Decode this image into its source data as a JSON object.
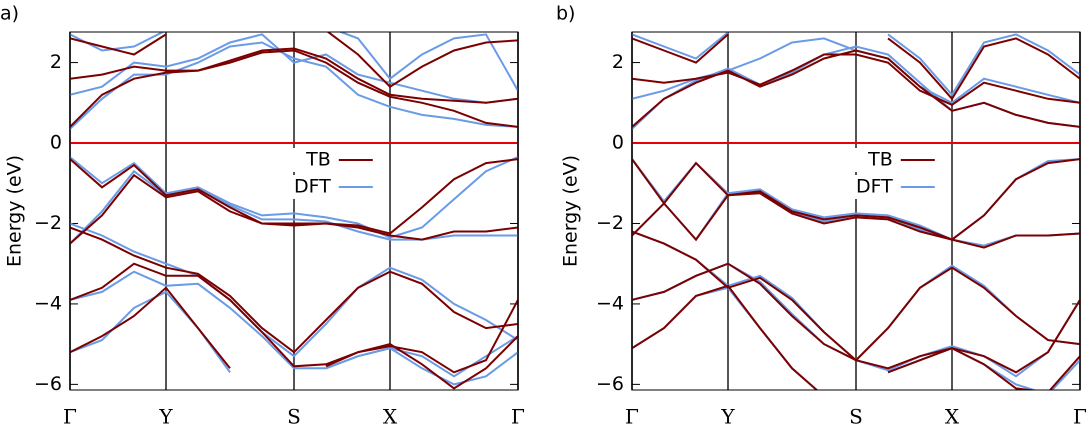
{
  "chart_data": [
    {
      "type": "line",
      "panel_label": "a)",
      "ylabel": "Energy (eV)",
      "x": [
        0,
        0.25,
        0.5,
        0.75,
        1.0,
        1.25,
        1.5,
        1.75,
        2.0,
        2.25,
        2.5,
        2.75,
        3.0,
        3.25,
        3.5
      ],
      "xlim": [
        0,
        3.5
      ],
      "xticks": [
        {
          "value": 0,
          "label": "Γ"
        },
        {
          "value": 0.75,
          "label": "Y"
        },
        {
          "value": 1.75,
          "label": "S"
        },
        {
          "value": 2.5,
          "label": "X"
        },
        {
          "value": 3.5,
          "label": "Γ"
        }
      ],
      "ylim": [
        -6.14,
        2.76
      ],
      "yticks": [
        {
          "value": -6,
          "label": "−6"
        },
        {
          "value": -4,
          "label": "−4"
        },
        {
          "value": -2,
          "label": "−2"
        },
        0,
        2
      ],
      "hline": {
        "value": 0,
        "color": "#e8000b"
      },
      "legend": "center",
      "series": [
        {
          "name": "DFT",
          "color": "#6a9be6",
          "bands": [
            [
              0.35,
              1.1,
              1.7,
              1.7,
              2.0,
              2.4,
              2.5,
              2.1,
              1.9,
              1.2,
              0.9,
              0.7,
              0.6,
              0.45,
              0.4
            ],
            [
              1.2,
              1.4,
              2.0,
              1.9,
              2.1,
              2.5,
              2.7,
              2.0,
              2.2,
              1.7,
              1.5,
              1.3,
              1.1,
              1.0,
              1.1
            ],
            [
              2.7,
              2.3,
              2.4,
              2.8,
              null,
              null,
              null,
              null,
              2.9,
              2.6,
              1.6,
              2.2,
              2.6,
              2.7,
              1.3
            ],
            [
              -0.35,
              -1.0,
              -0.5,
              -1.25,
              -1.1,
              -1.5,
              -1.8,
              -1.75,
              -1.85,
              -2.0,
              -2.35,
              -2.1,
              -1.4,
              -0.7,
              -0.35
            ],
            [
              -2.5,
              -1.7,
              -0.7,
              -1.3,
              -1.15,
              -1.55,
              -1.9,
              -1.9,
              -1.95,
              -2.2,
              -2.4,
              -2.4,
              -2.3,
              -2.3,
              -2.3
            ],
            [
              -2.0,
              -2.3,
              -2.7,
              -3.0,
              -3.3,
              -3.9,
              -4.7,
              -5.3,
              -4.5,
              -3.6,
              -3.1,
              -3.4,
              -4.0,
              -4.4,
              -4.9
            ],
            [
              -3.9,
              -3.7,
              -3.2,
              -3.55,
              -3.5,
              -4.1,
              -4.8,
              -5.6,
              -5.6,
              -5.3,
              -5.1,
              -5.3,
              -5.8,
              -5.3,
              -4.8
            ],
            [
              -5.2,
              -4.9,
              -4.1,
              -3.7,
              -4.6,
              -5.7,
              null,
              null,
              -5.6,
              -5.3,
              -5.1,
              -5.6,
              -6.0,
              -5.8,
              -5.2
            ]
          ]
        },
        {
          "name": "TB",
          "color": "#7b0000",
          "bands": [
            [
              0.4,
              1.2,
              1.6,
              1.75,
              1.8,
              2.0,
              2.25,
              2.3,
              2.0,
              1.5,
              1.15,
              1.0,
              0.8,
              0.5,
              0.4
            ],
            [
              1.6,
              1.7,
              1.9,
              1.8,
              1.8,
              2.05,
              2.3,
              2.35,
              2.1,
              1.6,
              1.2,
              1.1,
              1.05,
              1.0,
              1.1
            ],
            [
              2.6,
              2.4,
              2.2,
              2.7,
              null,
              null,
              null,
              null,
              2.8,
              2.2,
              1.4,
              1.9,
              2.3,
              2.5,
              2.55
            ],
            [
              -0.4,
              -1.1,
              -0.55,
              -1.3,
              -1.15,
              -1.6,
              -2.0,
              -2.0,
              -2.0,
              -2.05,
              -2.25,
              -1.6,
              -0.9,
              -0.5,
              -0.4
            ],
            [
              -2.5,
              -1.8,
              -0.8,
              -1.35,
              -1.2,
              -1.7,
              -2.0,
              -2.05,
              -2.0,
              -2.1,
              -2.3,
              -2.4,
              -2.2,
              -2.2,
              -2.1
            ],
            [
              -2.1,
              -2.4,
              -2.8,
              -3.1,
              -3.25,
              -3.8,
              -4.6,
              -5.2,
              -4.4,
              -3.6,
              -3.2,
              -3.5,
              -4.2,
              -4.6,
              -4.5
            ],
            [
              -3.9,
              -3.6,
              -3.0,
              -3.3,
              -3.3,
              -3.9,
              -4.7,
              -5.55,
              -5.5,
              -5.2,
              -5.05,
              -5.2,
              -5.7,
              -5.4,
              -3.9
            ],
            [
              -5.2,
              -4.8,
              -4.3,
              -3.6,
              -4.6,
              -5.6,
              null,
              null,
              -5.55,
              -5.2,
              -5.0,
              -5.5,
              -6.1,
              -5.6,
              -4.8
            ]
          ]
        }
      ]
    },
    {
      "type": "line",
      "panel_label": "b)",
      "ylabel": "Energy (eV)",
      "x": [
        0,
        0.25,
        0.5,
        0.75,
        1.0,
        1.25,
        1.5,
        1.75,
        2.0,
        2.25,
        2.5,
        2.75,
        3.0,
        3.25,
        3.5
      ],
      "xlim": [
        0,
        3.5
      ],
      "xticks": [
        {
          "value": 0,
          "label": "Γ"
        },
        {
          "value": 0.75,
          "label": "Y"
        },
        {
          "value": 1.75,
          "label": "S"
        },
        {
          "value": 2.5,
          "label": "X"
        },
        {
          "value": 3.5,
          "label": "Γ"
        }
      ],
      "ylim": [
        -6.14,
        2.76
      ],
      "yticks": [
        {
          "value": -6,
          "label": "−6"
        },
        {
          "value": -4,
          "label": "−4"
        },
        {
          "value": -2,
          "label": "−2"
        },
        0,
        2
      ],
      "hline": {
        "value": 0,
        "color": "#e8000b"
      },
      "legend": "center",
      "series": [
        {
          "name": "DFT",
          "color": "#6a9be6",
          "bands": [
            [
              0.35,
              1.1,
              1.55,
              1.85,
              1.45,
              1.75,
              2.2,
              2.4,
              2.2,
              1.5,
              0.8,
              1.0,
              0.7,
              0.5,
              0.4
            ],
            [
              1.1,
              1.3,
              1.6,
              1.8,
              2.1,
              2.5,
              2.6,
              2.3,
              2.1,
              1.4,
              1.0,
              1.6,
              1.4,
              1.2,
              1.0
            ],
            [
              2.7,
              2.4,
              2.1,
              2.75,
              null,
              null,
              null,
              null,
              2.7,
              2.1,
              1.2,
              2.5,
              2.7,
              2.3,
              1.7
            ],
            [
              -0.4,
              -1.45,
              -0.5,
              -1.25,
              -1.15,
              -1.65,
              -1.85,
              -1.75,
              -1.8,
              -2.05,
              -2.4,
              -1.8,
              -0.9,
              -0.45,
              -0.4
            ],
            [
              -2.3,
              -1.5,
              -2.4,
              -1.25,
              -1.2,
              -1.7,
              -1.95,
              -1.8,
              -1.85,
              -2.15,
              -2.4,
              -2.55,
              -2.3,
              -2.3,
              -2.25
            ],
            [
              -2.2,
              -2.5,
              -2.9,
              -3.55,
              -3.3,
              -3.85,
              -4.7,
              -5.4,
              -4.6,
              -3.6,
              -3.05,
              -3.55,
              -4.3,
              -4.9,
              -5.0
            ],
            [
              -3.9,
              -3.7,
              -3.3,
              -3.0,
              -3.45,
              -4.25,
              -5.0,
              -5.4,
              -5.65,
              -5.3,
              -5.05,
              -5.3,
              -5.8,
              -5.2,
              -3.9
            ],
            [
              -5.1,
              -4.6,
              -3.8,
              -3.6,
              -4.6,
              -5.6,
              -6.3,
              null,
              -5.7,
              -5.4,
              -5.1,
              -5.5,
              -6.0,
              -6.25,
              -5.4
            ]
          ]
        },
        {
          "name": "TB",
          "color": "#7b0000",
          "bands": [
            [
              0.4,
              1.1,
              1.5,
              1.8,
              1.4,
              1.7,
              2.1,
              2.3,
              2.1,
              1.4,
              0.8,
              1.0,
              0.7,
              0.5,
              0.4
            ],
            [
              1.6,
              1.5,
              1.6,
              1.75,
              1.45,
              1.8,
              2.2,
              2.2,
              2.0,
              1.3,
              0.95,
              1.5,
              1.3,
              1.1,
              1.0
            ],
            [
              2.6,
              2.3,
              2.0,
              2.7,
              null,
              null,
              null,
              null,
              2.6,
              2.0,
              1.1,
              2.4,
              2.6,
              2.2,
              1.6
            ],
            [
              -0.4,
              -1.5,
              -0.5,
              -1.3,
              -1.2,
              -1.7,
              -1.9,
              -1.8,
              -1.85,
              -2.1,
              -2.4,
              -1.8,
              -0.9,
              -0.5,
              -0.4
            ],
            [
              -2.3,
              -1.5,
              -2.4,
              -1.3,
              -1.25,
              -1.75,
              -2.0,
              -1.85,
              -1.9,
              -2.2,
              -2.4,
              -2.6,
              -2.3,
              -2.3,
              -2.25
            ],
            [
              -2.2,
              -2.5,
              -2.9,
              -3.6,
              -3.35,
              -3.9,
              -4.7,
              -5.4,
              -4.6,
              -3.6,
              -3.1,
              -3.6,
              -4.3,
              -4.9,
              -5.0
            ],
            [
              -3.9,
              -3.7,
              -3.3,
              -3.0,
              -3.5,
              -4.3,
              -5.0,
              -5.4,
              -5.6,
              -5.3,
              -5.1,
              -5.3,
              -5.7,
              -5.2,
              -3.9
            ],
            [
              -5.1,
              -4.6,
              -3.8,
              -3.55,
              -4.6,
              -5.6,
              -6.3,
              null,
              -5.7,
              -5.4,
              -5.1,
              -5.5,
              -6.1,
              -6.2,
              -5.3
            ]
          ]
        }
      ]
    }
  ]
}
